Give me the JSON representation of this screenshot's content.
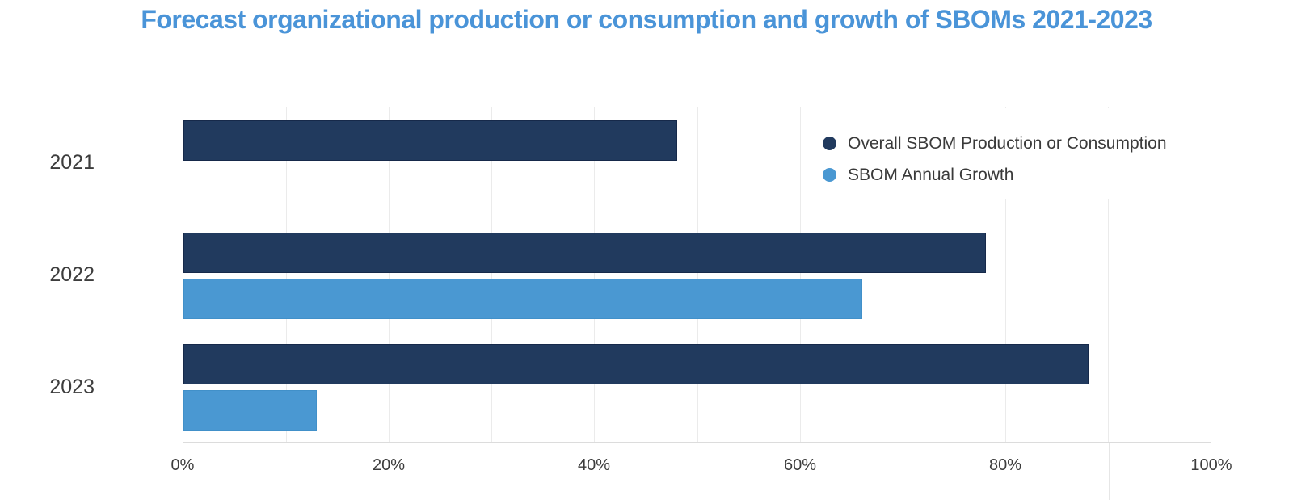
{
  "page": {
    "title": "Forecast organizational production or consumption and growth of SBOMs 2021-2023"
  },
  "colors": {
    "title_text": "#4a94d8",
    "production_bar": "#213a5e",
    "production_bar_border": "#16294a",
    "growth_bar": "#4a98d2",
    "growth_bar_border": "#4190c9",
    "axis_text": "#3d3d3d",
    "legend_text": "#3a3a3a",
    "gridline": "#ebebeb",
    "plot_border": "#dcdcdc",
    "artifact_line": "#e6e6e6"
  },
  "chart_data": {
    "type": "bar",
    "orientation": "horizontal",
    "title": "Forecast organizational production or consumption and growth of SBOMs 2021-2023",
    "categories": [
      "2021",
      "2022",
      "2023"
    ],
    "series": [
      {
        "name": "Overall SBOM Production or Consumption",
        "color": "#213a5e",
        "border_color": "#16294a",
        "values": [
          48,
          78,
          88
        ]
      },
      {
        "name": "SBOM Annual Growth",
        "color": "#4a98d2",
        "border_color": "#4190c9",
        "values": [
          null,
          66,
          13
        ]
      }
    ],
    "values_unit": "%",
    "x_axis": {
      "min": 0,
      "max": 100,
      "gridline_step": 10,
      "ticks": [
        {
          "label": "0%",
          "value": 0
        },
        {
          "label": "20%",
          "value": 20
        },
        {
          "label": "40%",
          "value": 40
        },
        {
          "label": "60%",
          "value": 60
        },
        {
          "label": "80%",
          "value": 80
        },
        {
          "label": "100%",
          "value": 100
        }
      ]
    },
    "grid": true,
    "legend_position": "top-right"
  }
}
